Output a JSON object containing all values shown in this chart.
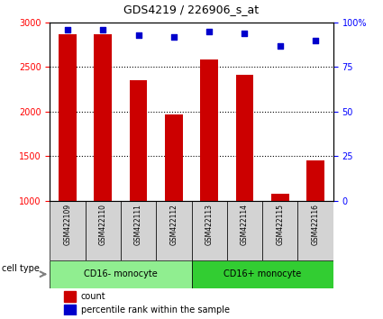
{
  "title": "GDS4219 / 226906_s_at",
  "samples": [
    "GSM422109",
    "GSM422110",
    "GSM422111",
    "GSM422112",
    "GSM422113",
    "GSM422114",
    "GSM422115",
    "GSM422116"
  ],
  "counts": [
    2870,
    2870,
    2350,
    1970,
    2580,
    2410,
    1075,
    1450
  ],
  "percentile_ranks": [
    96,
    96,
    93,
    92,
    95,
    94,
    87,
    90
  ],
  "cell_types": [
    {
      "label": "CD16- monocyte",
      "start": 0,
      "end": 4,
      "color": "#90EE90"
    },
    {
      "label": "CD16+ monocyte",
      "start": 4,
      "end": 8,
      "color": "#32CD32"
    }
  ],
  "ylim_left": [
    1000,
    3000
  ],
  "ylim_right": [
    0,
    100
  ],
  "yticks_left": [
    1000,
    1500,
    2000,
    2500,
    3000
  ],
  "yticks_right": [
    0,
    25,
    50,
    75,
    100
  ],
  "bar_color": "#CC0000",
  "dot_color": "#0000CC",
  "bg_color": "#FFFFFF",
  "label_bg": "#D3D3D3",
  "cell_type_label": "cell type",
  "legend_count_label": "count",
  "legend_pct_label": "percentile rank within the sample",
  "bar_width": 0.5
}
